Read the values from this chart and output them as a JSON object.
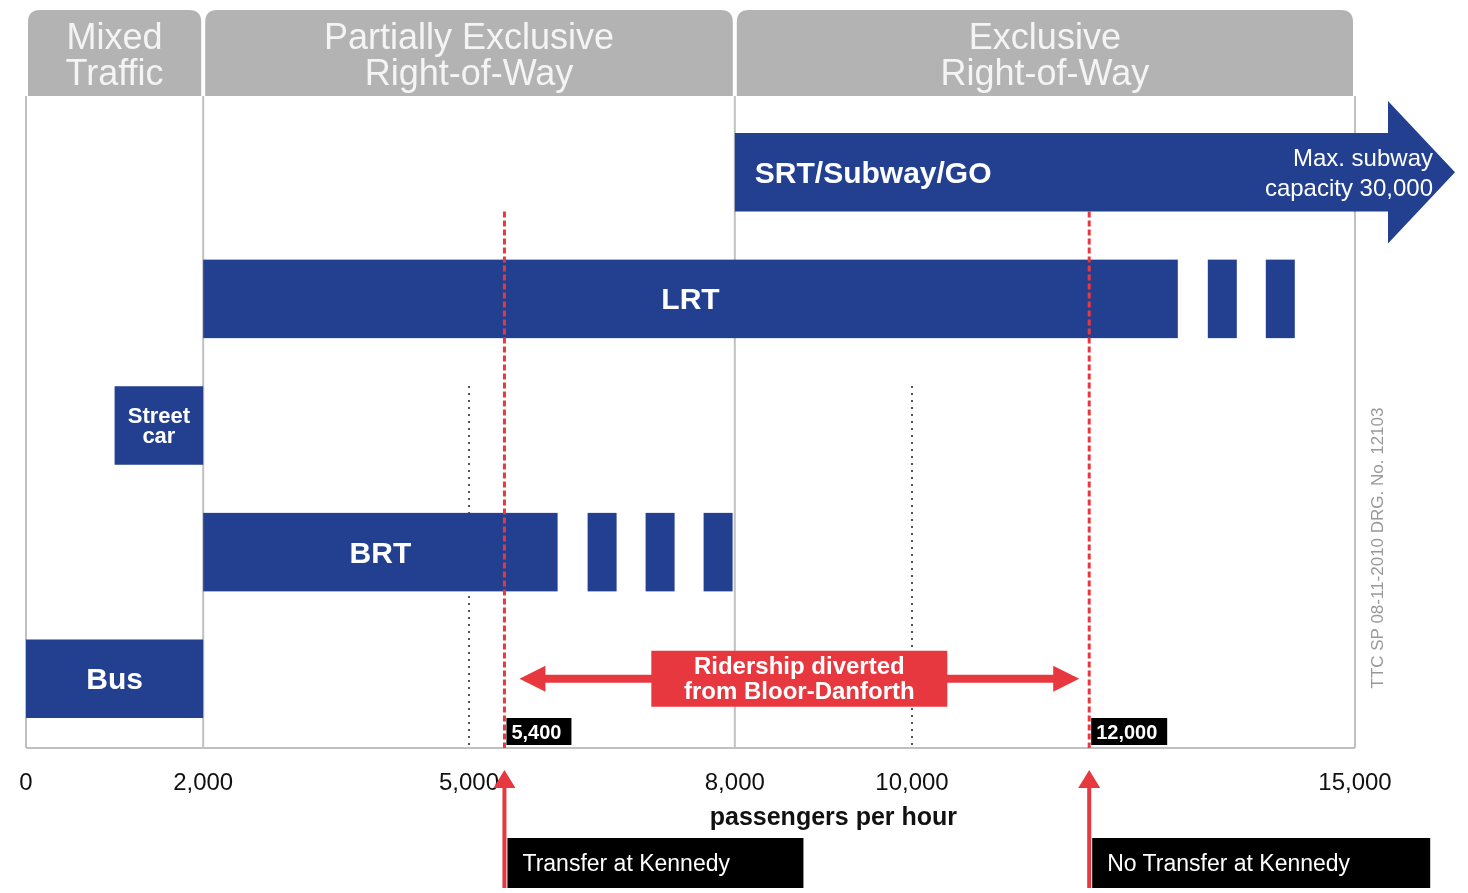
{
  "chart_data": {
    "type": "bar",
    "orientation": "horizontal",
    "xlabel": "passengers per hour",
    "categories": [
      "SRT/Subway/GO",
      "LRT",
      "Street car",
      "BRT",
      "Bus"
    ],
    "base": [
      8000,
      2000,
      1000,
      2000,
      0
    ],
    "values": [
      7000,
      11000,
      1000,
      4000,
      2000
    ],
    "color": "#22408f",
    "xlim": [
      0,
      15000
    ],
    "xticks": [
      0,
      {
        "value": 2000,
        "label": "2,000"
      },
      {
        "value": 5000,
        "label": "5,000"
      },
      {
        "value": 8000,
        "label": "8,000"
      },
      {
        "value": 10000,
        "label": "10,000"
      },
      {
        "value": 15000,
        "label": "15,000"
      }
    ],
    "legend": false,
    "ref_lines": [
      {
        "axis": "x",
        "value": 2000,
        "color": "#c0c0c0",
        "line_style": "solid"
      },
      {
        "axis": "x",
        "value": 8000,
        "color": "#c0c0c0",
        "line_style": "solid"
      },
      {
        "axis": "x",
        "value": 5000,
        "color": "#555555",
        "line_style": "dotted"
      },
      {
        "axis": "x",
        "value": 10000,
        "color": "#555555",
        "line_style": "dotted"
      },
      {
        "axis": "x",
        "value": 5400,
        "label": "5,400",
        "color": "#e8383f",
        "line_style": "dashed"
      },
      {
        "axis": "x",
        "value": 12000,
        "label": "12,000",
        "color": "#e8383f",
        "line_style": "dashed"
      }
    ],
    "annotations": [
      "Ridership diverted from Bloor-Danforth",
      "Max. subway capacity 30,000",
      "TTC SP 08-11-2010 DRG. No. 12103",
      "Transfer at Kennedy",
      "No Transfer at Kennedy",
      "Mixed Traffic",
      "Partially Exclusive Right-of-Way",
      "Exclusive Right-of-Way"
    ]
  }
}
